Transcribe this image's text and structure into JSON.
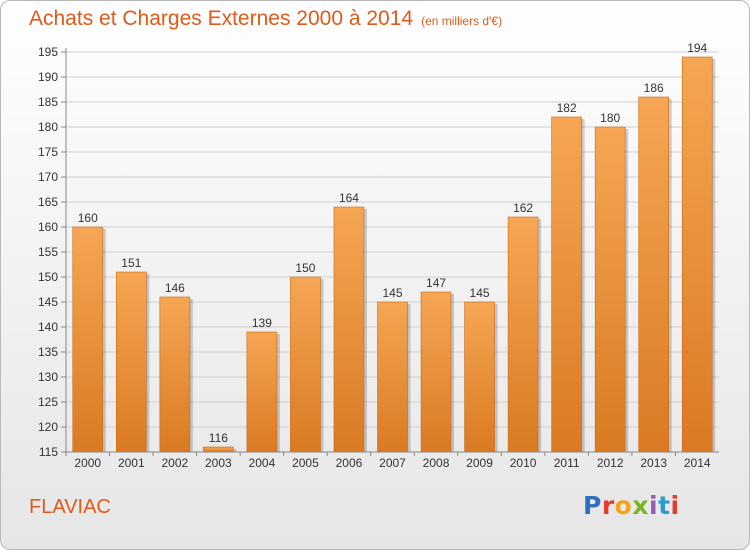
{
  "page": {
    "title": "Achats et Charges Externes 2000 à 2014",
    "subtitle": "(en milliers d'€)",
    "commune": "FLAVIAC",
    "logo": "Proxiti"
  },
  "colors": {
    "bar_top": "#f6a654",
    "bar_bottom": "#d97a22",
    "accent": "#e05a1a",
    "logo_letters": [
      "#2d6fc1",
      "#e53b2c",
      "#f2a51a",
      "#7bb420",
      "#9b59b6",
      "#2d9bd1",
      "#e53b2c"
    ]
  },
  "chart_data": {
    "type": "bar",
    "title": "Achats et Charges Externes 2000 à 2014",
    "subtitle": "(en milliers d'€)",
    "categories": [
      "2000",
      "2001",
      "2002",
      "2003",
      "2004",
      "2005",
      "2006",
      "2007",
      "2008",
      "2009",
      "2010",
      "2011",
      "2012",
      "2013",
      "2014"
    ],
    "values": [
      160,
      151,
      146,
      116,
      139,
      150,
      164,
      145,
      147,
      145,
      162,
      182,
      180,
      186,
      194
    ],
    "ylim": [
      115,
      195
    ],
    "yticks": [
      115,
      120,
      125,
      130,
      135,
      140,
      145,
      150,
      155,
      160,
      165,
      170,
      175,
      180,
      185,
      190,
      195
    ],
    "grid": true,
    "legend": "none"
  }
}
